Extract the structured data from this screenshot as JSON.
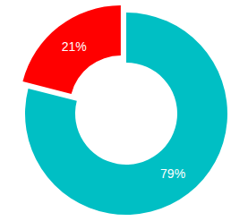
{
  "chart_data": {
    "type": "donut",
    "values": [
      79,
      21
    ],
    "value_labels": [
      "79%",
      "21%"
    ],
    "colors": [
      "#00bfc4",
      "#ff0000"
    ],
    "data_labels": true
  }
}
